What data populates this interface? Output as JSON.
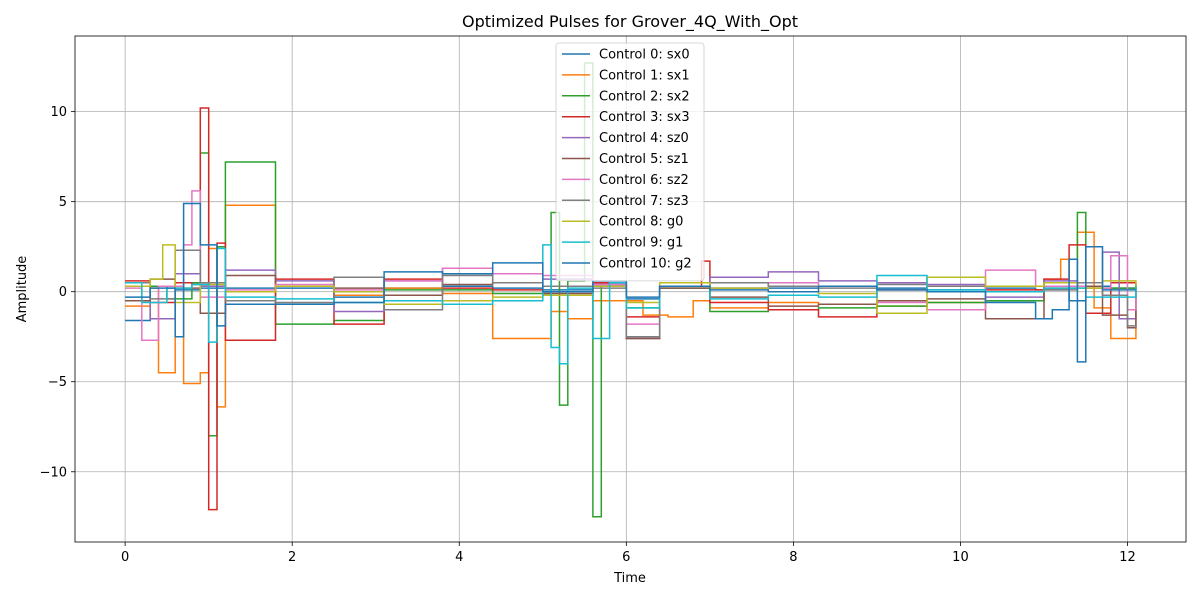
{
  "chart_data": {
    "type": "line",
    "step": true,
    "title": "Optimized Pulses for Grover_4Q_With_Opt",
    "xlabel": "Time",
    "ylabel": "Amplitude",
    "xlim": [
      -0.6,
      12.7
    ],
    "ylim": [
      -13.9,
      14.2
    ],
    "xticks": [
      0,
      2,
      4,
      6,
      8,
      10,
      12
    ],
    "yticks": [
      -10,
      -5,
      0,
      5,
      10
    ],
    "xtick_labels": [
      "0",
      "2",
      "4",
      "6",
      "8",
      "10",
      "12"
    ],
    "ytick_labels": [
      "−10",
      "−5",
      "0",
      "5",
      "10"
    ],
    "grid": true,
    "legend_position": "upper-center",
    "series": [
      {
        "name": "Control 0: sx0",
        "color": "#1f77b4",
        "x": [
          0,
          0.3,
          0.6,
          0.9,
          1.2,
          1.8,
          2.5,
          3.1,
          3.8,
          4.4,
          5.0,
          5.6,
          6.0,
          6.4,
          7.0,
          7.7,
          8.3,
          9.0,
          9.6,
          10.3,
          10.9,
          11.3,
          11.5,
          11.8,
          12.1
        ],
        "y": [
          -1.6,
          0.3,
          0.1,
          0.2,
          0.2,
          0.2,
          -0.3,
          0.2,
          0.3,
          0.2,
          0.1,
          0.4,
          -0.4,
          0.3,
          0.2,
          0.2,
          0.3,
          0.2,
          0.1,
          0.2,
          0.1,
          -0.5,
          0.3,
          0.2,
          0.2
        ]
      },
      {
        "name": "Control 1: sx1",
        "color": "#ff7f0e",
        "x": [
          0,
          0.3,
          0.4,
          0.6,
          0.7,
          0.9,
          1.0,
          1.1,
          1.2,
          1.8,
          2.5,
          3.1,
          3.8,
          4.4,
          5.1,
          5.3,
          5.6,
          6.2,
          6.5,
          6.8,
          7.0,
          7.7,
          8.3,
          9.0,
          9.6,
          10.3,
          11.0,
          11.2,
          11.4,
          11.6,
          11.8,
          12.1
        ],
        "y": [
          -0.8,
          0.2,
          -4.5,
          0.5,
          -5.1,
          -4.5,
          2.4,
          -6.4,
          4.8,
          0.3,
          -0.2,
          0.2,
          -0.1,
          -2.6,
          -1.1,
          -1.5,
          -0.5,
          -1.3,
          -1.4,
          -0.5,
          -0.9,
          -0.6,
          -0.7,
          -0.8,
          -0.6,
          -0.5,
          0.7,
          1.8,
          3.3,
          -0.9,
          -2.6,
          0.2
        ]
      },
      {
        "name": "Control 2: sx2",
        "color": "#2ca02c",
        "x": [
          0,
          0.2,
          0.5,
          0.8,
          0.9,
          1.0,
          1.1,
          1.2,
          1.8,
          2.5,
          3.1,
          3.8,
          4.4,
          5.1,
          5.2,
          5.3,
          5.5,
          5.6,
          5.7,
          6.0,
          6.4,
          7.0,
          7.7,
          8.3,
          9.0,
          9.6,
          10.3,
          11.0,
          11.4,
          11.5,
          12.1
        ],
        "y": [
          -0.5,
          0.3,
          -0.4,
          0.5,
          7.7,
          -8.0,
          2.5,
          7.2,
          -1.8,
          -1.6,
          0.1,
          0.1,
          -0.1,
          4.4,
          -6.3,
          0.6,
          12.7,
          -12.5,
          0.5,
          -0.9,
          0.2,
          -1.1,
          -1.0,
          -0.9,
          -0.8,
          -0.6,
          -0.5,
          0.3,
          4.4,
          0.2,
          0.2
        ]
      },
      {
        "name": "Control 3: sx3",
        "color": "#d62728",
        "x": [
          0,
          0.3,
          0.6,
          0.8,
          0.9,
          1.0,
          1.1,
          1.2,
          1.8,
          2.5,
          3.1,
          3.8,
          4.4,
          5.0,
          5.6,
          6.0,
          6.4,
          6.9,
          7.0,
          7.7,
          8.3,
          9.0,
          9.6,
          10.3,
          11.0,
          11.3,
          11.5,
          11.8,
          12.1
        ],
        "y": [
          0.6,
          -0.6,
          0.5,
          0.4,
          10.2,
          -12.1,
          2.7,
          -2.7,
          0.7,
          -1.8,
          0.7,
          0.2,
          0.1,
          0.3,
          0.5,
          -1.4,
          0.3,
          1.7,
          -0.6,
          -1.0,
          -1.4,
          0.1,
          0.3,
          0.1,
          0.7,
          2.6,
          -1.2,
          0.5,
          0.5
        ]
      },
      {
        "name": "Control 4: sz0",
        "color": "#9467bd",
        "x": [
          0,
          0.3,
          0.6,
          0.9,
          1.2,
          1.8,
          2.5,
          3.1,
          3.8,
          4.4,
          5.0,
          5.6,
          6.0,
          6.4,
          7.0,
          7.7,
          8.3,
          9.0,
          9.6,
          10.3,
          11.0,
          11.4,
          11.7,
          11.9,
          12.1
        ],
        "y": [
          0.5,
          -1.5,
          1.0,
          0.3,
          1.2,
          0.6,
          -1.1,
          0.6,
          1.3,
          0.5,
          0.7,
          0.4,
          -2.6,
          0.3,
          0.8,
          1.1,
          0.6,
          0.5,
          0.4,
          -0.3,
          0.6,
          0.5,
          2.2,
          -1.5,
          0.5
        ]
      },
      {
        "name": "Control 5: sz1",
        "color": "#8c564b",
        "x": [
          0,
          0.3,
          0.6,
          0.9,
          1.2,
          1.8,
          2.5,
          3.1,
          3.8,
          4.4,
          5.0,
          5.6,
          6.0,
          6.4,
          7.0,
          7.7,
          8.3,
          9.0,
          9.6,
          10.3,
          11.0,
          11.4,
          11.7,
          12.0,
          12.1
        ],
        "y": [
          -0.5,
          0.7,
          0.2,
          -1.2,
          0.9,
          0.3,
          0.2,
          -0.2,
          0.4,
          0.5,
          -0.1,
          0.3,
          -2.6,
          0.2,
          -0.3,
          -0.8,
          -0.7,
          -0.5,
          -0.4,
          -1.5,
          0.2,
          0.3,
          -1.3,
          -2.0,
          0.5
        ]
      },
      {
        "name": "Control 6: sz2",
        "color": "#e377c2",
        "x": [
          0,
          0.2,
          0.4,
          0.7,
          0.8,
          0.9,
          1.2,
          1.8,
          2.5,
          3.1,
          3.8,
          4.4,
          5.0,
          5.6,
          6.0,
          6.4,
          7.0,
          7.7,
          8.3,
          9.0,
          9.6,
          10.3,
          10.9,
          11.5,
          11.8,
          12.0,
          12.1
        ],
        "y": [
          0.2,
          -2.7,
          0.3,
          2.6,
          5.6,
          -0.3,
          0.1,
          0.4,
          0.1,
          0.6,
          1.3,
          1.0,
          0.9,
          0.4,
          -1.8,
          0.3,
          0.2,
          0.5,
          0.3,
          -0.6,
          -1.0,
          1.2,
          0.3,
          0.2,
          2.0,
          -1.0,
          0.2
        ]
      },
      {
        "name": "Control 7: sz3",
        "color": "#7f7f7f",
        "x": [
          0,
          0.3,
          0.6,
          0.9,
          1.2,
          1.8,
          2.5,
          3.1,
          3.8,
          4.4,
          5.0,
          5.6,
          6.0,
          6.4,
          7.0,
          7.7,
          8.3,
          9.0,
          9.6,
          10.3,
          11.0,
          11.4,
          11.7,
          12.0,
          12.1
        ],
        "y": [
          0.5,
          -0.4,
          2.3,
          0.5,
          -0.5,
          -0.6,
          0.8,
          -1.0,
          0.9,
          0.5,
          0.3,
          0.2,
          -2.5,
          0.3,
          0.5,
          0.3,
          0.2,
          0.4,
          0.3,
          0.3,
          0.1,
          0.5,
          -0.2,
          -1.9,
          -2.0
        ]
      },
      {
        "name": "Control 8: g0",
        "color": "#bcbd22",
        "x": [
          0,
          0.3,
          0.45,
          0.6,
          0.9,
          1.2,
          1.8,
          2.5,
          3.1,
          3.8,
          4.4,
          5.0,
          5.6,
          6.0,
          6.4,
          7.0,
          7.7,
          8.3,
          9.0,
          9.6,
          10.3,
          11.0,
          11.4,
          11.7,
          12.1
        ],
        "y": [
          0.3,
          0.7,
          2.6,
          -0.6,
          0.4,
          0.0,
          0.3,
          0.0,
          -0.7,
          -0.5,
          -0.3,
          -0.2,
          0.3,
          -0.6,
          0.5,
          0.2,
          0.0,
          -0.1,
          -1.2,
          0.8,
          0.3,
          0.5,
          0.2,
          0.6,
          0.2
        ]
      },
      {
        "name": "Control 9: g1",
        "color": "#17becf",
        "x": [
          0,
          0.2,
          0.5,
          0.8,
          1.0,
          1.1,
          1.2,
          1.8,
          2.5,
          3.1,
          3.8,
          4.4,
          5.0,
          5.1,
          5.2,
          5.3,
          5.6,
          5.8,
          6.0,
          6.4,
          7.0,
          7.7,
          8.3,
          9.0,
          9.6,
          10.3,
          11.0,
          11.5,
          12.1
        ],
        "y": [
          0.5,
          -0.6,
          0.2,
          0.4,
          -2.8,
          2.4,
          -0.3,
          -0.4,
          -0.6,
          -0.5,
          -0.7,
          -0.5,
          2.6,
          -3.1,
          -4.0,
          0.2,
          -2.6,
          0.5,
          -0.9,
          0.3,
          -0.4,
          -0.2,
          -0.3,
          0.9,
          0.1,
          0.0,
          0.2,
          -0.3,
          0.3
        ]
      },
      {
        "name": "Control 10: g2",
        "color": "#1f77b4",
        "x": [
          0,
          0.3,
          0.6,
          0.7,
          0.9,
          1.1,
          1.2,
          1.8,
          2.5,
          3.1,
          3.8,
          4.4,
          5.0,
          5.6,
          6.0,
          6.4,
          7.0,
          7.7,
          8.3,
          9.0,
          9.6,
          10.3,
          10.9,
          11.1,
          11.3,
          11.4,
          11.5,
          11.7,
          12.1
        ],
        "y": [
          -0.3,
          0.2,
          -2.5,
          4.9,
          2.6,
          -1.9,
          -0.7,
          -0.7,
          -0.6,
          1.1,
          1.0,
          1.6,
          0.0,
          0.6,
          -0.3,
          0.3,
          0.1,
          0.0,
          0.3,
          0.1,
          0.0,
          -0.6,
          -1.5,
          -1.0,
          1.8,
          -3.9,
          2.5,
          0.1,
          0.1
        ]
      }
    ]
  }
}
